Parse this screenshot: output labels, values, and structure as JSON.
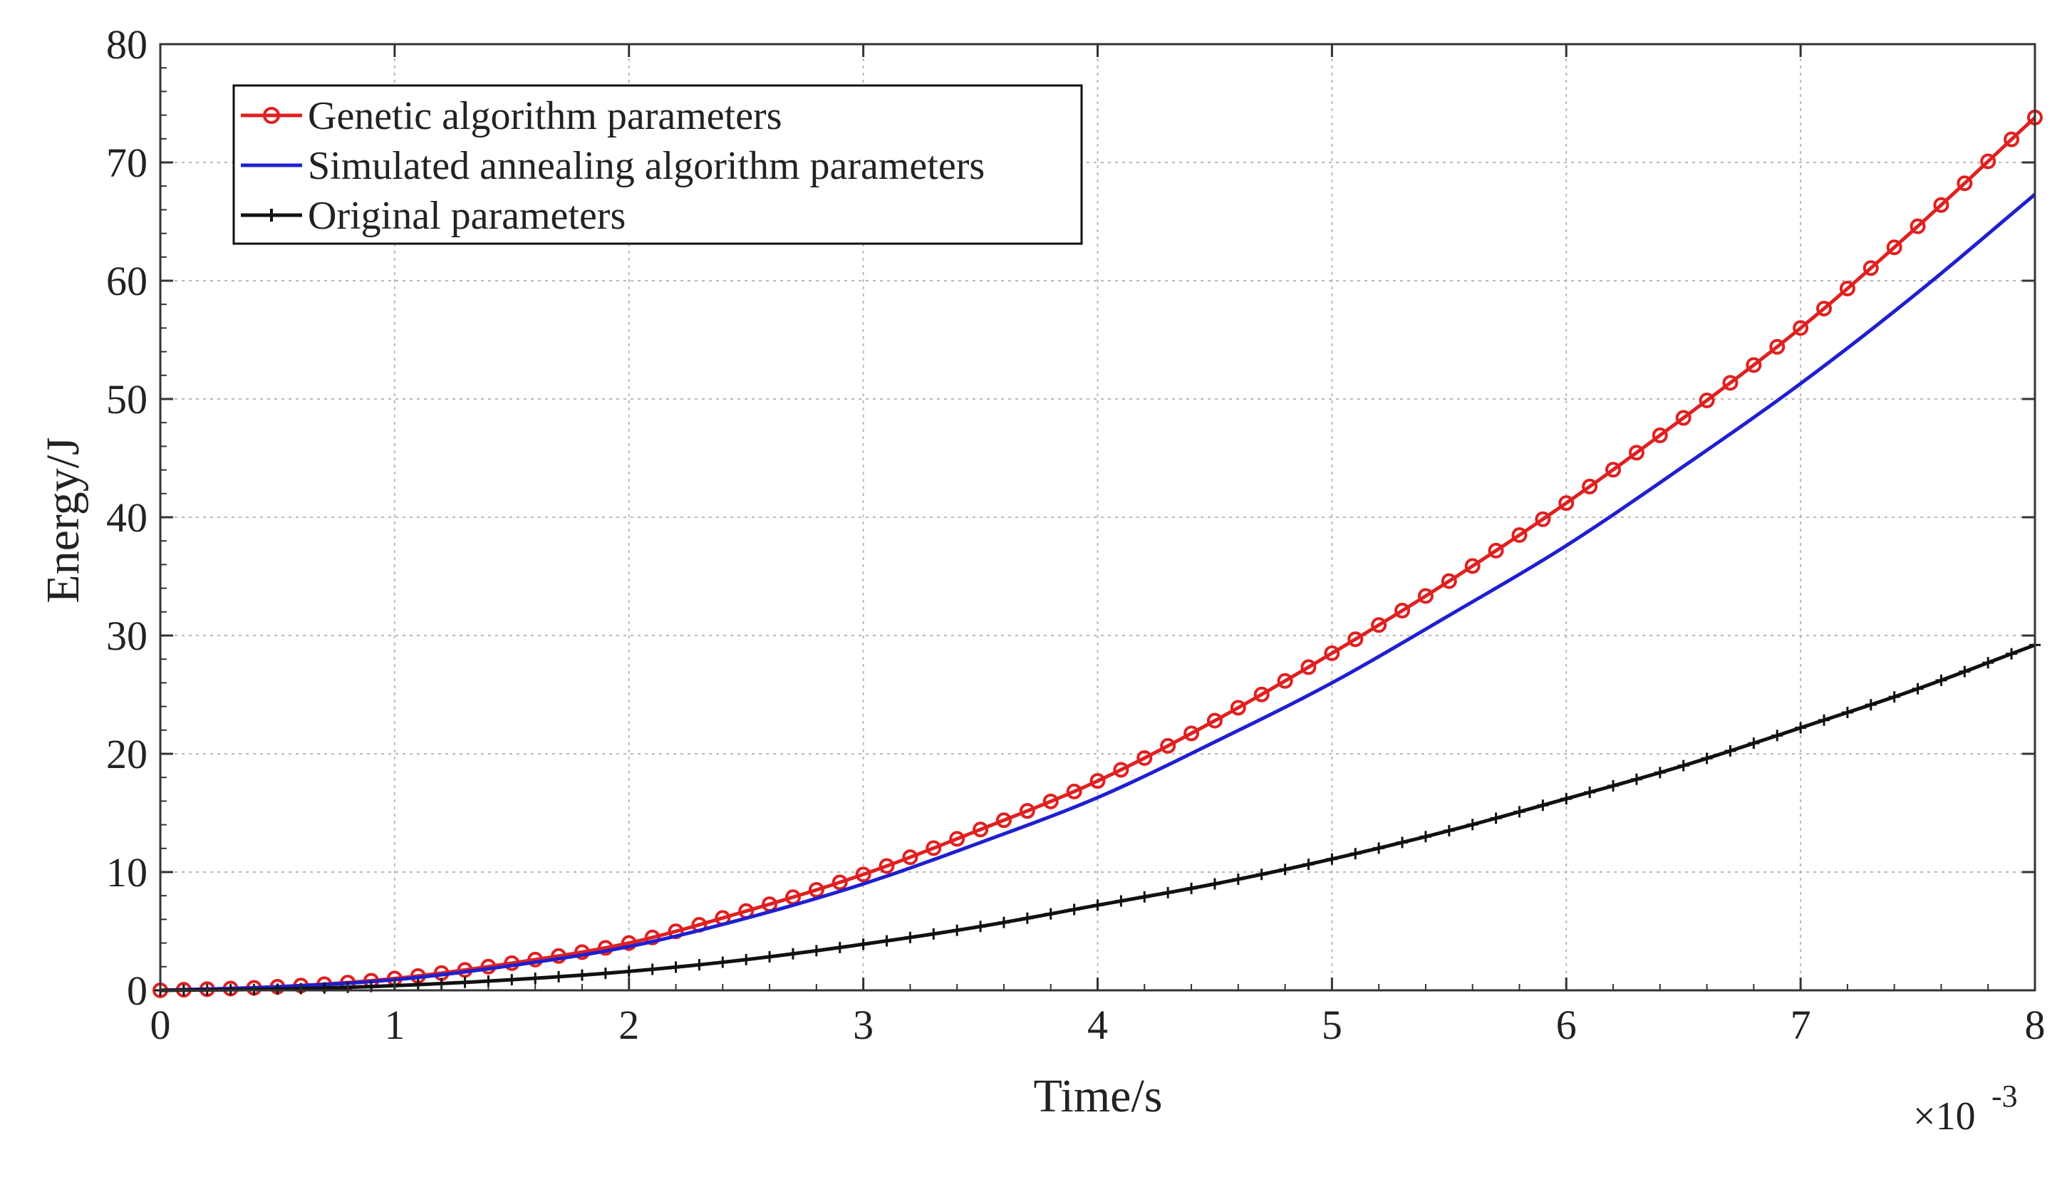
{
  "chart_data": {
    "type": "line",
    "xlabel": "Time/s",
    "ylabel": "Energy/J",
    "x_exponent_label": "×10",
    "x_exponent_power": "-3",
    "xlim": [
      0,
      8
    ],
    "ylim": [
      0,
      80
    ],
    "xticks": [
      "0",
      "1",
      "2",
      "3",
      "4",
      "5",
      "6",
      "7",
      "8"
    ],
    "yticks": [
      "0",
      "10",
      "20",
      "30",
      "40",
      "50",
      "60",
      "70",
      "80"
    ],
    "x_unit_multiplier": 0.001,
    "grid": true,
    "legend_position": "top-left",
    "x": [
      0,
      0.5,
      1,
      1.5,
      2,
      2.5,
      3,
      3.5,
      4,
      4.5,
      5,
      5.5,
      6,
      6.5,
      7,
      7.5,
      8
    ],
    "series": [
      {
        "name": "Genetic algorithm parameters",
        "color": "#e02020",
        "marker": "circle",
        "values": [
          0,
          0.3,
          1.0,
          2.3,
          4.0,
          6.7,
          9.8,
          13.6,
          17.7,
          22.8,
          28.5,
          34.6,
          41.2,
          48.4,
          56.0,
          64.6,
          73.8
        ]
      },
      {
        "name": "Simulated annealing algorithm parameters",
        "color": "#1f1fd0",
        "marker": "none",
        "values": [
          0,
          0.3,
          0.9,
          2.1,
          3.7,
          6.1,
          9.0,
          12.5,
          16.3,
          21.0,
          26.0,
          31.7,
          37.6,
          44.3,
          51.3,
          59.0,
          67.3
        ]
      },
      {
        "name": "Original parameters",
        "color": "#111111",
        "marker": "plus",
        "values": [
          0,
          0.1,
          0.4,
          0.9,
          1.6,
          2.6,
          3.9,
          5.4,
          7.2,
          9.0,
          11.1,
          13.5,
          16.2,
          19.0,
          22.2,
          25.5,
          29.2
        ]
      }
    ]
  }
}
